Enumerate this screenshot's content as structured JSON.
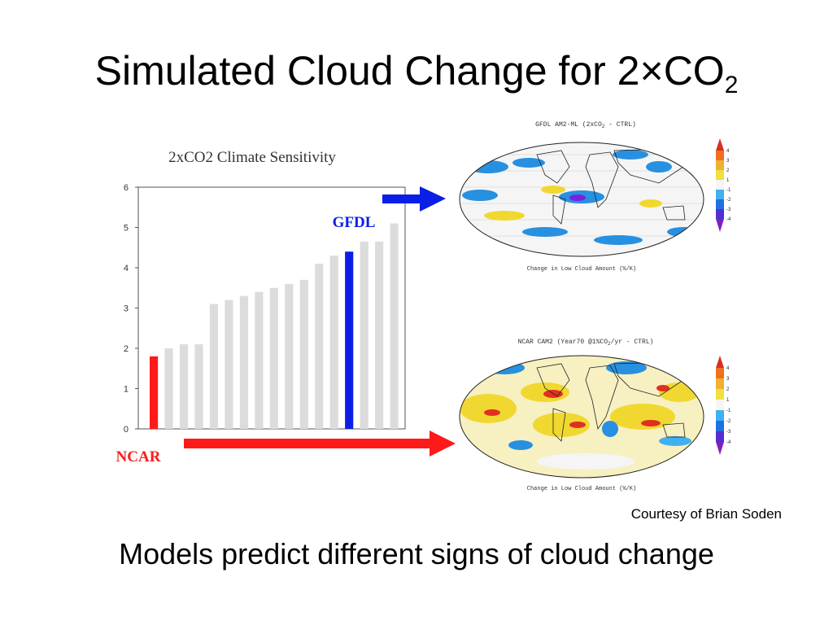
{
  "slide": {
    "title_main": "Simulated Cloud Change for 2",
    "title_times": "×",
    "title_co": "CO",
    "title_sub": "2",
    "credit": "Courtesy of Brian Soden",
    "caption": "Models predict different signs of cloud change"
  },
  "chart_data": {
    "type": "bar",
    "title": "2xCO2 Climate Sensitivity",
    "xlabel": "",
    "ylabel": "",
    "ylim": [
      0,
      6
    ],
    "yticks": [
      0,
      1,
      2,
      3,
      4,
      5,
      6
    ],
    "values": [
      1.8,
      2.0,
      2.1,
      2.1,
      3.1,
      3.2,
      3.3,
      3.4,
      3.5,
      3.6,
      3.7,
      4.1,
      4.3,
      4.4,
      4.65,
      4.65,
      5.1
    ],
    "highlight": [
      {
        "index": 0,
        "label": "NCAR",
        "color": "#ff1a1a"
      },
      {
        "index": 13,
        "label": "GFDL",
        "color": "#0a1ee6"
      }
    ],
    "bar_color": "#dcdcdc",
    "grid": false
  },
  "maps": {
    "gfdl": {
      "title": "GFDL AM2-ML (2xCO",
      "title_sub": "2",
      "title_end": " - CTRL)",
      "xlabel": "Change in Low Cloud Amount (%/K)",
      "colorbar_labels": [
        "4",
        "3",
        "2",
        "1",
        "-1",
        "-2",
        "-3",
        "-4"
      ]
    },
    "ncar": {
      "title": "NCAR CAM2 (Year70 @1%CO",
      "title_sub": "2",
      "title_end": "/yr - CTRL)",
      "xlabel": "Change in Low Cloud Amount (%/K)",
      "colorbar_labels": [
        "4",
        "3",
        "2",
        "1",
        "-1",
        "-2",
        "-3",
        "-4"
      ]
    }
  },
  "colors": {
    "ncar": "#ff1a1a",
    "gfdl": "#0a1ee6",
    "positive": "#f0d830",
    "strong_positive": "#e03020",
    "negative": "#2890e0",
    "strong_negative": "#7a20e0"
  }
}
